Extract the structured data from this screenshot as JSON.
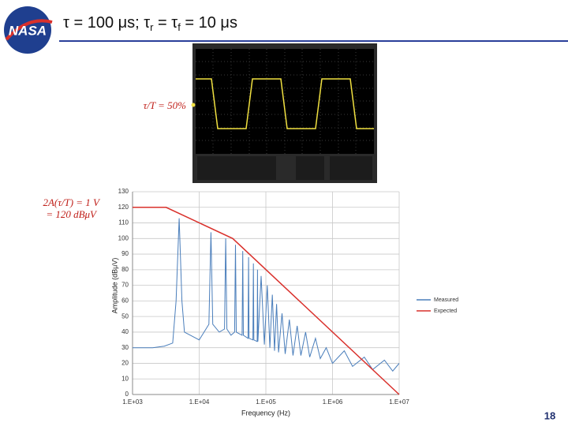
{
  "slide": {
    "logo_text": "NASA",
    "title_parts": [
      "τ = 100 μs; τ",
      "r",
      " = τ",
      "f",
      "  = 10 μs"
    ],
    "scope_label": "τ/T = 50%",
    "page_number": "18"
  },
  "chart_data": {
    "type": "line",
    "x_label": "Frequency (Hz)",
    "y_label": "Amplitude (dBμV)",
    "annotations": [
      "2A(τ/T) = 1 V",
      "= 120 dBμV"
    ],
    "log_x": true,
    "grid": true,
    "legend": "right",
    "xlim": [
      1000,
      10000000
    ],
    "xticks": [
      {
        "value": 1000,
        "label": "1.E+03"
      },
      {
        "value": 10000,
        "label": "1.E+04"
      },
      {
        "value": 100000,
        "label": "1.E+05"
      },
      {
        "value": 1000000,
        "label": "1.E+06"
      },
      {
        "value": 10000000,
        "label": "1.E+07"
      }
    ],
    "ylim": [
      0,
      130
    ],
    "yticks": [
      0,
      10,
      20,
      30,
      40,
      50,
      60,
      70,
      80,
      90,
      100,
      110,
      120,
      130
    ],
    "series": [
      {
        "name": "Measured",
        "color": "#4a7ebb",
        "x": [
          1000,
          2000,
          3000,
          4000,
          4500,
          5000,
          5500,
          6000,
          10000,
          14000,
          15000,
          16000,
          20000,
          24000,
          25000,
          26000,
          30000,
          34000,
          35000,
          36000,
          44000,
          45000,
          46000,
          54000,
          55000,
          56000,
          64000,
          65000,
          66000,
          74000,
          75000,
          76000,
          85000,
          95000,
          105000,
          115000,
          125000,
          135000,
          145000,
          155000,
          175000,
          195000,
          225000,
          255000,
          295000,
          335000,
          395000,
          455000,
          555000,
          655000,
          805000,
          1000000,
          1500000,
          2000000,
          3000000,
          4000000,
          6000000,
          8000000,
          10000000
        ],
        "values": [
          30,
          30,
          31,
          33,
          60,
          113,
          60,
          40,
          35,
          45,
          104,
          45,
          40,
          42,
          100,
          42,
          38,
          40,
          96,
          40,
          38,
          92,
          38,
          36,
          88,
          36,
          35,
          84,
          35,
          34,
          80,
          34,
          76,
          32,
          70,
          30,
          64,
          28,
          58,
          27,
          52,
          26,
          48,
          25,
          44,
          25,
          40,
          24,
          36,
          23,
          30,
          20,
          28,
          18,
          24,
          16,
          22,
          15,
          20
        ]
      },
      {
        "name": "Expected",
        "color": "#d9302b",
        "x": [
          1000,
          3183,
          31830,
          10000000
        ],
        "values": [
          120,
          120,
          100,
          0
        ]
      }
    ]
  }
}
